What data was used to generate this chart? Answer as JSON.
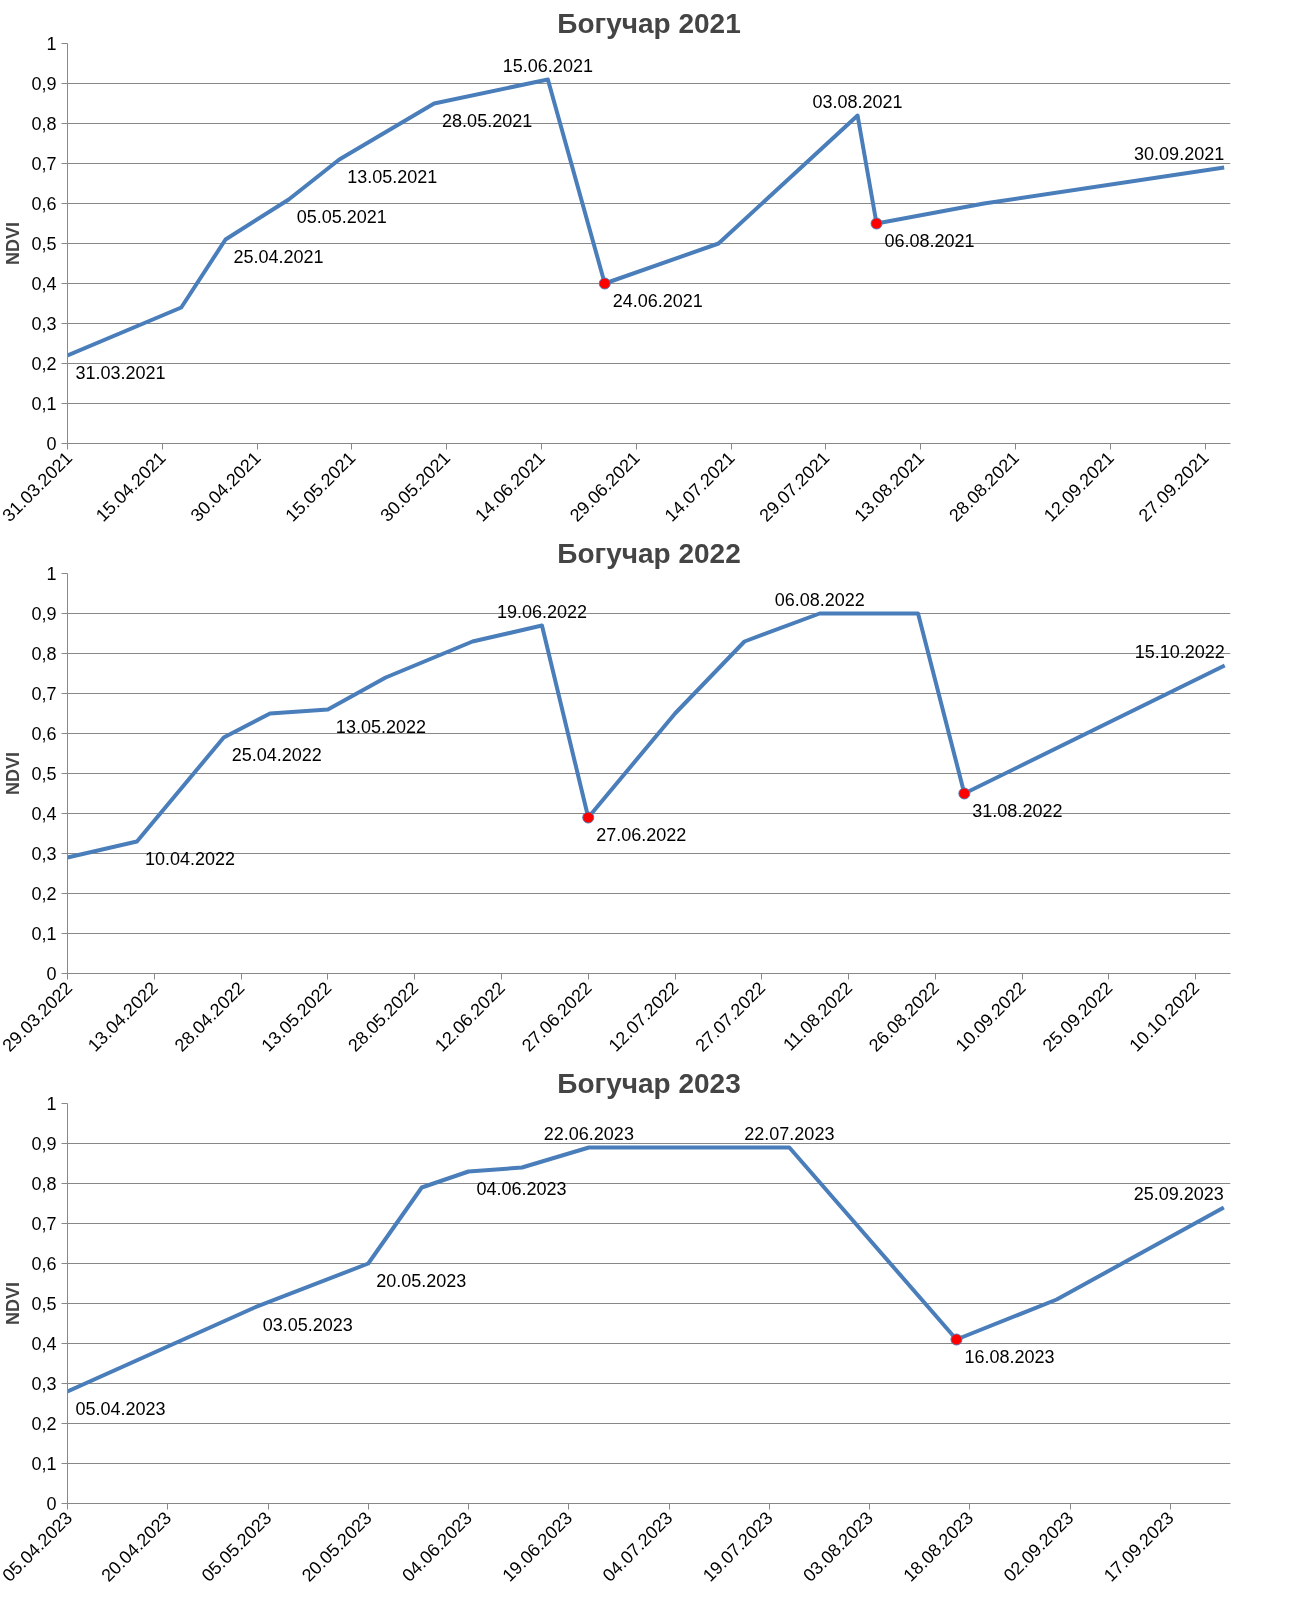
{
  "chart_data": [
    {
      "type": "line",
      "title": "Богучар 2021",
      "ylabel": "NDVI",
      "grid": "y",
      "marker": "none",
      "line_style": "solid",
      "xlim": [
        "2021-03-31",
        "2021-10-01"
      ],
      "ylim": [
        0,
        1
      ],
      "xticks": [
        {
          "value": "2021-03-31",
          "label": "31.03.2021"
        },
        {
          "value": "2021-04-15",
          "label": "15.04.2021"
        },
        {
          "value": "2021-04-30",
          "label": "30.04.2021"
        },
        {
          "value": "2021-05-15",
          "label": "15.05.2021"
        },
        {
          "value": "2021-05-30",
          "label": "30.05.2021"
        },
        {
          "value": "2021-06-14",
          "label": "14.06.2021"
        },
        {
          "value": "2021-06-29",
          "label": "29.06.2021"
        },
        {
          "value": "2021-07-14",
          "label": "14.07.2021"
        },
        {
          "value": "2021-07-29",
          "label": "29.07.2021"
        },
        {
          "value": "2021-08-13",
          "label": "13.08.2021"
        },
        {
          "value": "2021-08-28",
          "label": "28.08.2021"
        },
        {
          "value": "2021-09-12",
          "label": "12.09.2021"
        },
        {
          "value": "2021-09-27",
          "label": "27.09.2021"
        }
      ],
      "yticks": [
        0,
        {
          "value": 0.1,
          "label": "0,1"
        },
        {
          "value": 0.2,
          "label": "0,2"
        },
        {
          "value": 0.3,
          "label": "0,3"
        },
        {
          "value": 0.4,
          "label": "0,4"
        },
        {
          "value": 0.5,
          "label": "0,5"
        },
        {
          "value": 0.6,
          "label": "0,6"
        },
        {
          "value": 0.7,
          "label": "0,7"
        },
        {
          "value": 0.8,
          "label": "0,8"
        },
        {
          "value": 0.9,
          "label": "0,9"
        },
        1
      ],
      "series": [
        {
          "type": "line",
          "color": "#4a7ebb",
          "x": [
            "2021-03-31",
            "2021-04-18",
            "2021-04-25",
            "2021-05-05",
            "2021-05-13",
            "2021-05-28",
            "2021-06-15",
            "2021-06-24",
            "2021-07-12",
            "2021-08-03",
            "2021-08-06",
            "2021-08-23",
            "2021-09-30"
          ],
          "values": [
            0.22,
            0.34,
            0.51,
            0.61,
            0.71,
            0.85,
            0.91,
            0.4,
            0.5,
            0.82,
            0.55,
            0.6,
            0.69
          ]
        },
        {
          "type": "scatter",
          "marker": "circle",
          "color": "#ff0000",
          "x": [
            "2021-06-24",
            "2021-08-06"
          ],
          "values": [
            0.4,
            0.55
          ]
        }
      ],
      "annotations": [
        {
          "text": "31.03.2021",
          "x": "2021-03-31",
          "y": 0.22
        },
        {
          "text": "25.04.2021",
          "x": "2021-04-25",
          "y": 0.51
        },
        {
          "text": "05.05.2021",
          "x": "2021-05-05",
          "y": 0.61
        },
        {
          "text": "13.05.2021",
          "x": "2021-05-13",
          "y": 0.71
        },
        {
          "text": "28.05.2021",
          "x": "2021-05-28",
          "y": 0.85
        },
        {
          "text": "15.06.2021",
          "x": "2021-06-15",
          "y": 0.91
        },
        {
          "text": "24.06.2021",
          "x": "2021-06-24",
          "y": 0.4
        },
        {
          "text": "03.08.2021",
          "x": "2021-08-03",
          "y": 0.82
        },
        {
          "text": "06.08.2021",
          "x": "2021-08-06",
          "y": 0.55
        },
        {
          "text": "30.09.2021",
          "x": "2021-09-30",
          "y": 0.69
        }
      ]
    },
    {
      "type": "line",
      "title": "Богучар 2022",
      "ylabel": "NDVI",
      "grid": "y",
      "marker": "none",
      "line_style": "solid",
      "xlim": [
        "2022-03-29",
        "2022-10-16"
      ],
      "ylim": [
        0,
        1
      ],
      "xticks": [
        {
          "value": "2022-03-29",
          "label": "29.03.2022"
        },
        {
          "value": "2022-04-13",
          "label": "13.04.2022"
        },
        {
          "value": "2022-04-28",
          "label": "28.04.2022"
        },
        {
          "value": "2022-05-13",
          "label": "13.05.2022"
        },
        {
          "value": "2022-05-28",
          "label": "28.05.2022"
        },
        {
          "value": "2022-06-12",
          "label": "12.06.2022"
        },
        {
          "value": "2022-06-27",
          "label": "27.06.2022"
        },
        {
          "value": "2022-07-12",
          "label": "12.07.2022"
        },
        {
          "value": "2022-07-27",
          "label": "27.07.2022"
        },
        {
          "value": "2022-08-11",
          "label": "11.08.2022"
        },
        {
          "value": "2022-08-26",
          "label": "26.08.2022"
        },
        {
          "value": "2022-09-10",
          "label": "10.09.2022"
        },
        {
          "value": "2022-09-25",
          "label": "25.09.2022"
        },
        {
          "value": "2022-10-10",
          "label": "10.10.2022"
        }
      ],
      "yticks": [
        0,
        {
          "value": 0.1,
          "label": "0,1"
        },
        {
          "value": 0.2,
          "label": "0,2"
        },
        {
          "value": 0.3,
          "label": "0,3"
        },
        {
          "value": 0.4,
          "label": "0,4"
        },
        {
          "value": 0.5,
          "label": "0,5"
        },
        {
          "value": 0.6,
          "label": "0,6"
        },
        {
          "value": 0.7,
          "label": "0,7"
        },
        {
          "value": 0.8,
          "label": "0,8"
        },
        {
          "value": 0.9,
          "label": "0,9"
        },
        1
      ],
      "series": [
        {
          "type": "line",
          "color": "#4a7ebb",
          "x": [
            "2022-03-29",
            "2022-04-10",
            "2022-04-25",
            "2022-05-03",
            "2022-05-13",
            "2022-05-23",
            "2022-06-07",
            "2022-06-19",
            "2022-06-27",
            "2022-07-12",
            "2022-07-24",
            "2022-08-06",
            "2022-08-23",
            "2022-08-31",
            "2022-10-15"
          ],
          "values": [
            0.29,
            0.33,
            0.59,
            0.65,
            0.66,
            0.74,
            0.83,
            0.87,
            0.39,
            0.65,
            0.83,
            0.9,
            0.9,
            0.45,
            0.77
          ]
        },
        {
          "type": "scatter",
          "marker": "circle",
          "color": "#ff0000",
          "x": [
            "2022-06-27",
            "2022-08-31"
          ],
          "values": [
            0.39,
            0.45
          ]
        }
      ],
      "annotations": [
        {
          "text": "10.04.2022",
          "x": "2022-04-10",
          "y": 0.33
        },
        {
          "text": "25.04.2022",
          "x": "2022-04-25",
          "y": 0.59
        },
        {
          "text": "13.05.2022",
          "x": "2022-05-13",
          "y": 0.66
        },
        {
          "text": "19.06.2022",
          "x": "2022-06-19",
          "y": 0.87
        },
        {
          "text": "27.06.2022",
          "x": "2022-06-27",
          "y": 0.39
        },
        {
          "text": "06.08.2022",
          "x": "2022-08-06",
          "y": 0.9
        },
        {
          "text": "31.08.2022",
          "x": "2022-08-31",
          "y": 0.45
        },
        {
          "text": "15.10.2022",
          "x": "2022-10-15",
          "y": 0.77
        }
      ]
    },
    {
      "type": "line",
      "title": "Богучар 2023",
      "ylabel": "NDVI",
      "grid": "y",
      "marker": "none",
      "line_style": "solid",
      "xlim": [
        "2023-04-05",
        "2023-09-26"
      ],
      "ylim": [
        0,
        1
      ],
      "xticks": [
        {
          "value": "2023-04-05",
          "label": "05.04.2023"
        },
        {
          "value": "2023-04-20",
          "label": "20.04.2023"
        },
        {
          "value": "2023-05-05",
          "label": "05.05.2023"
        },
        {
          "value": "2023-05-20",
          "label": "20.05.2023"
        },
        {
          "value": "2023-06-04",
          "label": "04.06.2023"
        },
        {
          "value": "2023-06-19",
          "label": "19.06.2023"
        },
        {
          "value": "2023-07-04",
          "label": "04.07.2023"
        },
        {
          "value": "2023-07-19",
          "label": "19.07.2023"
        },
        {
          "value": "2023-08-03",
          "label": "03.08.2023"
        },
        {
          "value": "2023-08-18",
          "label": "18.08.2023"
        },
        {
          "value": "2023-09-02",
          "label": "02.09.2023"
        },
        {
          "value": "2023-09-17",
          "label": "17.09.2023"
        }
      ],
      "yticks": [
        0,
        {
          "value": 0.1,
          "label": "0,1"
        },
        {
          "value": 0.2,
          "label": "0,2"
        },
        {
          "value": 0.3,
          "label": "0,3"
        },
        {
          "value": 0.4,
          "label": "0,4"
        },
        {
          "value": 0.5,
          "label": "0,5"
        },
        {
          "value": 0.6,
          "label": "0,6"
        },
        {
          "value": 0.7,
          "label": "0,7"
        },
        {
          "value": 0.8,
          "label": "0,8"
        },
        {
          "value": 0.9,
          "label": "0,9"
        },
        1
      ],
      "series": [
        {
          "type": "line",
          "color": "#4a7ebb",
          "x": [
            "2023-04-05",
            "2023-05-03",
            "2023-05-20",
            "2023-05-28",
            "2023-06-04",
            "2023-06-12",
            "2023-06-22",
            "2023-07-22",
            "2023-08-16",
            "2023-08-31",
            "2023-09-25"
          ],
          "values": [
            0.28,
            0.49,
            0.6,
            0.79,
            0.83,
            0.84,
            0.89,
            0.89,
            0.41,
            0.51,
            0.74
          ]
        },
        {
          "type": "scatter",
          "marker": "circle",
          "color": "#ff0000",
          "x": [
            "2023-08-16"
          ],
          "values": [
            0.41
          ]
        }
      ],
      "annotations": [
        {
          "text": "05.04.2023",
          "x": "2023-04-05",
          "y": 0.28
        },
        {
          "text": "03.05.2023",
          "x": "2023-05-03",
          "y": 0.49
        },
        {
          "text": "20.05.2023",
          "x": "2023-05-20",
          "y": 0.6
        },
        {
          "text": "04.06.2023",
          "x": "2023-06-04",
          "y": 0.83
        },
        {
          "text": "22.06.2023",
          "x": "2023-06-22",
          "y": 0.89
        },
        {
          "text": "22.07.2023",
          "x": "2023-07-22",
          "y": 0.89
        },
        {
          "text": "16.08.2023",
          "x": "2023-08-16",
          "y": 0.41
        },
        {
          "text": "25.09.2023",
          "x": "2023-09-25",
          "y": 0.74
        }
      ]
    }
  ]
}
